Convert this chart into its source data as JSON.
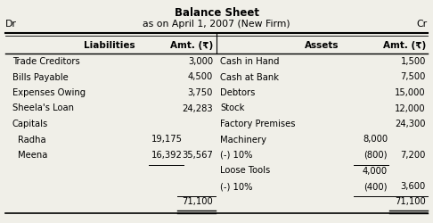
{
  "title": "Balance Sheet",
  "subtitle": "as on April 1, 2007 (New Firm)",
  "dr": "Dr",
  "cr": "Cr",
  "bg_color": "#f0efe8",
  "rows": [
    [
      "Trade Creditors",
      "",
      "3,000",
      "Cash in Hand",
      "",
      "1,500"
    ],
    [
      "Bills Payable",
      "",
      "4,500",
      "Cash at Bank",
      "",
      "7,500"
    ],
    [
      "Expenses Owing",
      "",
      "3,750",
      "Debtors",
      "",
      "15,000"
    ],
    [
      "Sheela's Loan",
      "",
      "24,283",
      "Stock",
      "",
      "12,000"
    ],
    [
      "Capitals",
      "",
      "",
      "Factory Premises",
      "",
      "24,300"
    ],
    [
      "  Radha",
      "19,175",
      "",
      "Machinery",
      "8,000",
      ""
    ],
    [
      "  Meena",
      "16,392",
      "35,567",
      "(-) 10%",
      "(800)",
      "7,200"
    ],
    [
      "",
      "",
      "",
      "Loose Tools",
      "4,000",
      ""
    ],
    [
      "",
      "",
      "",
      "(-) 10%",
      "(400)",
      "3,600"
    ],
    [
      "",
      "",
      "71,100",
      "",
      "",
      "71,100"
    ]
  ],
  "font_size": 7.2,
  "header_font_size": 7.5,
  "title_font_size": 8.5,
  "subtitle_font_size": 7.8
}
